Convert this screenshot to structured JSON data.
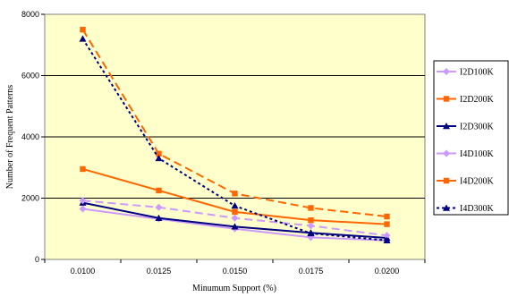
{
  "chart_data": {
    "type": "line",
    "title": "",
    "xlabel": "Minumum Support (%)",
    "ylabel": "Number of Frequent Patterns",
    "categories": [
      "0.0100",
      "0.0125",
      "0.0150",
      "0.0175",
      "0.0200"
    ],
    "yticks": [
      "0",
      "2000",
      "4000",
      "6000",
      "8000"
    ],
    "ylim": [
      0,
      8000
    ],
    "grid": "horizontal",
    "legend_position": "right",
    "plot_background": "#FFFFCC",
    "series": [
      {
        "name": "I2D100K",
        "values": [
          1650,
          1320,
          1000,
          720,
          620
        ],
        "color": "#CC99FF",
        "dash": "solid",
        "marker": "diamond"
      },
      {
        "name": "I2D200K",
        "values": [
          2950,
          2250,
          1550,
          1280,
          1150
        ],
        "color": "#FF6600",
        "dash": "solid",
        "marker": "square"
      },
      {
        "name": "I2D300K",
        "values": [
          1850,
          1350,
          1070,
          870,
          700
        ],
        "color": "#000080",
        "dash": "solid",
        "marker": "triangle"
      },
      {
        "name": "I4D100K",
        "values": [
          1920,
          1700,
          1350,
          1100,
          780
        ],
        "color": "#CC99FF",
        "dash": "dashed",
        "marker": "diamond"
      },
      {
        "name": "I4D200K",
        "values": [
          7500,
          3450,
          2150,
          1680,
          1400
        ],
        "color": "#FF6600",
        "dash": "dashed",
        "marker": "square"
      },
      {
        "name": "I4D300K",
        "values": [
          7200,
          3300,
          1750,
          850,
          620
        ],
        "color": "#000080",
        "dash": "dotted",
        "marker": "triangle"
      }
    ]
  }
}
